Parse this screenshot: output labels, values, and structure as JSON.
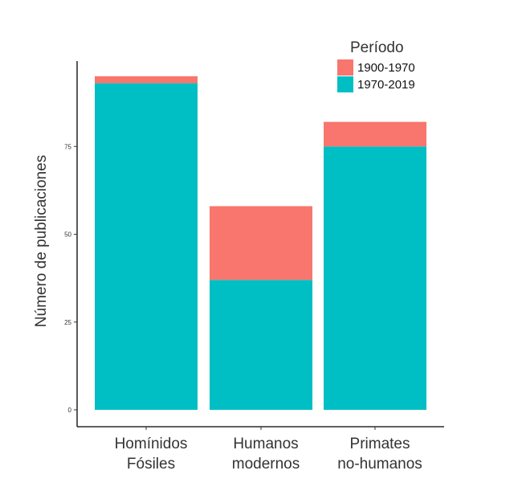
{
  "chart_data": {
    "type": "bar",
    "stacked": true,
    "categories": [
      [
        "Homínidos",
        "Fósiles"
      ],
      [
        "Humanos",
        "modernos"
      ],
      [
        "Primates",
        "no-humanos"
      ]
    ],
    "series": [
      {
        "name": "1970-2019",
        "values": [
          93,
          37,
          75
        ],
        "color": "#00BFC4"
      },
      {
        "name": "1900-1970",
        "values": [
          2,
          21,
          7
        ],
        "color": "#F8766D"
      }
    ],
    "title": "",
    "xlabel": "",
    "ylabel": "Número de publicaciones",
    "ylim": [
      0,
      100
    ],
    "yticks": [
      0,
      25,
      50,
      75
    ],
    "grid": false,
    "legend": {
      "title": "Período",
      "position": "top-right",
      "order": [
        "1900-1970",
        "1970-2019"
      ]
    }
  }
}
